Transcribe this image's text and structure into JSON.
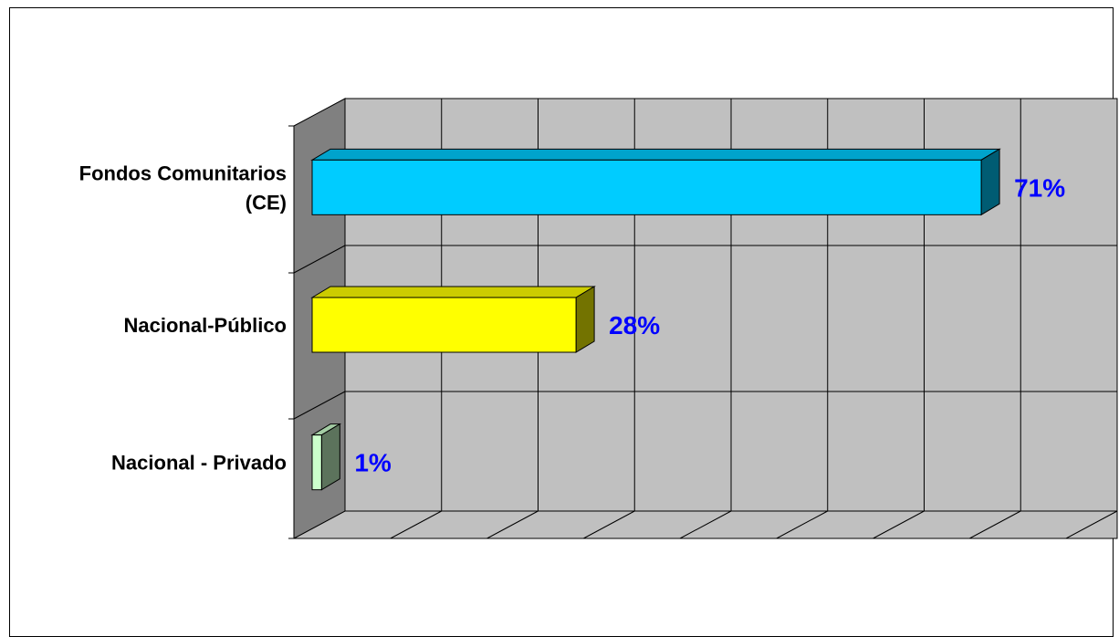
{
  "chart_data": {
    "type": "bar",
    "orientation": "horizontal",
    "three_d": true,
    "categories": [
      "Fondos Comunitarios (CE)",
      "Nacional-Público",
      "Nacional - Privado"
    ],
    "category_lines": [
      [
        "Fondos Comunitarios",
        "(CE)"
      ],
      [
        "Nacional-Público"
      ],
      [
        "Nacional - Privado"
      ]
    ],
    "values": [
      71,
      28,
      1
    ],
    "data_labels": [
      "71%",
      "28%",
      "1%"
    ],
    "xlim": [
      0,
      80
    ],
    "x_gridlines": 8,
    "grid": true,
    "legend": "none",
    "colors": {
      "bars": [
        "#00CCFF",
        "#FFFF00",
        "#CCFFCC"
      ],
      "data_label": "#0000FF",
      "wall": "#C0C0C0",
      "side_wall": "#808080"
    }
  }
}
